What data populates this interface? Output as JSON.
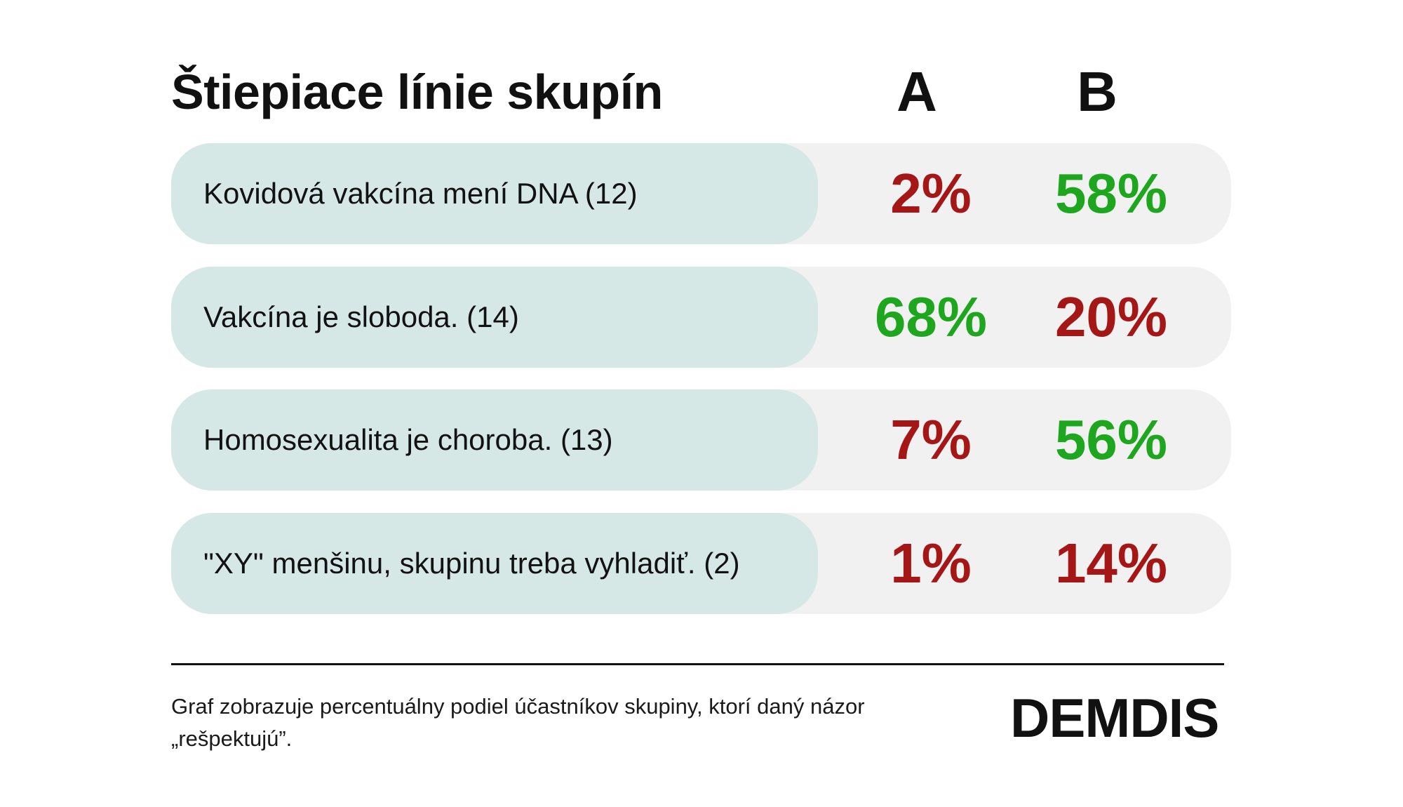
{
  "title": "Štiepiace línie skupín",
  "columns": [
    "A",
    "B"
  ],
  "colors": {
    "positive": "#1ea61e",
    "negative": "#a51616",
    "label_pill": "#d6e8e6",
    "row_bg": "#f1f1f1"
  },
  "footnote": "Graf zobrazuje percentuálny podiel účastníkov skupiny, ktorí daný názor „rešpektujú”.",
  "logo_text": "DEMDIS",
  "chart_data": {
    "type": "table",
    "title": "Štiepiace línie skupín",
    "columns": [
      "A",
      "B"
    ],
    "rows": [
      {
        "label": "Kovidová vakcína mení DNA (12)",
        "a": "2%",
        "b": "58%",
        "a_value": 2,
        "b_value": 58,
        "a_color": "#a51616",
        "b_color": "#1ea61e"
      },
      {
        "label": "Vakcína je sloboda. (14)",
        "a": "68%",
        "b": "20%",
        "a_value": 68,
        "b_value": 20,
        "a_color": "#1ea61e",
        "b_color": "#a51616"
      },
      {
        "label": "Homosexualita je choroba. (13)",
        "a": "7%",
        "b": "56%",
        "a_value": 7,
        "b_value": 56,
        "a_color": "#a51616",
        "b_color": "#1ea61e"
      },
      {
        "label": "\"XY\" menšinu, skupinu treba vyhladiť. (2)",
        "a": "1%",
        "b": "14%",
        "a_value": 1,
        "b_value": 14,
        "a_color": "#a51616",
        "b_color": "#a51616"
      }
    ]
  }
}
